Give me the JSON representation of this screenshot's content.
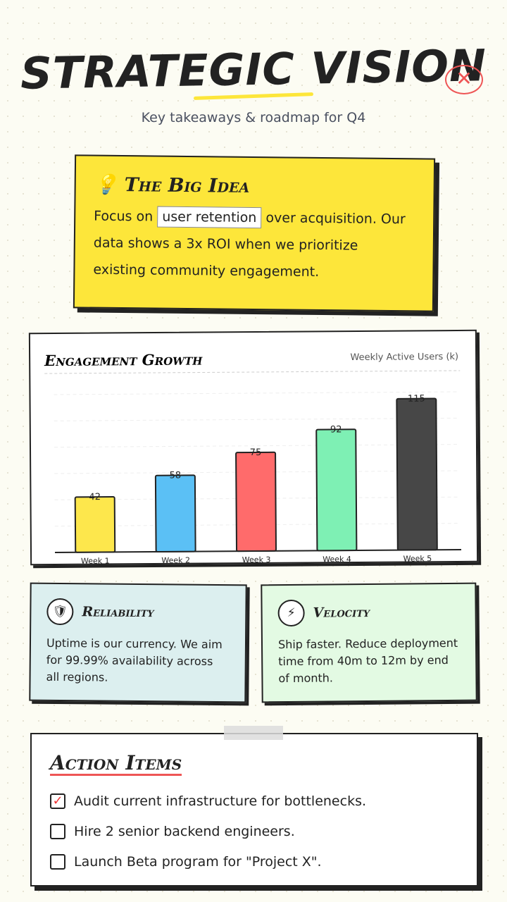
{
  "header": {
    "title": "STRATEGIC VISION",
    "subtitle": "Key takeaways & roadmap for Q4"
  },
  "big_idea": {
    "title": "The Big Idea",
    "text_before": "Focus on",
    "highlight": "user retention",
    "text_after": "over acquisition. Our data shows a 3x ROI when we prioritize existing community engagement."
  },
  "chart_data": {
    "type": "bar",
    "title": "Engagement Growth",
    "subtitle": "Weekly Active Users (k)",
    "categories": [
      "Week 1",
      "Week 2",
      "Week 3",
      "Week 4",
      "Week 5"
    ],
    "values": [
      42,
      58,
      75,
      92,
      115
    ],
    "colors": [
      "#fde74c",
      "#5bc0f5",
      "#ff6b6b",
      "#7ef0b4",
      "#474747"
    ],
    "ylim": [
      0,
      120
    ]
  },
  "cards": [
    {
      "title": "Reliability",
      "text": "Uptime is our currency. We aim for 99.99% availability across all regions."
    },
    {
      "title": "Velocity",
      "text": "Ship faster. Reduce deployment time from 40m to 12m by end of month."
    }
  ],
  "action_items": {
    "title": "Action Items",
    "items": [
      {
        "text": "Audit current infrastructure for bottlenecks.",
        "checked": true
      },
      {
        "text": "Hire 2 senior backend engineers.",
        "checked": false
      },
      {
        "text": "Launch Beta program for \"Project X\".",
        "checked": false
      }
    ]
  }
}
